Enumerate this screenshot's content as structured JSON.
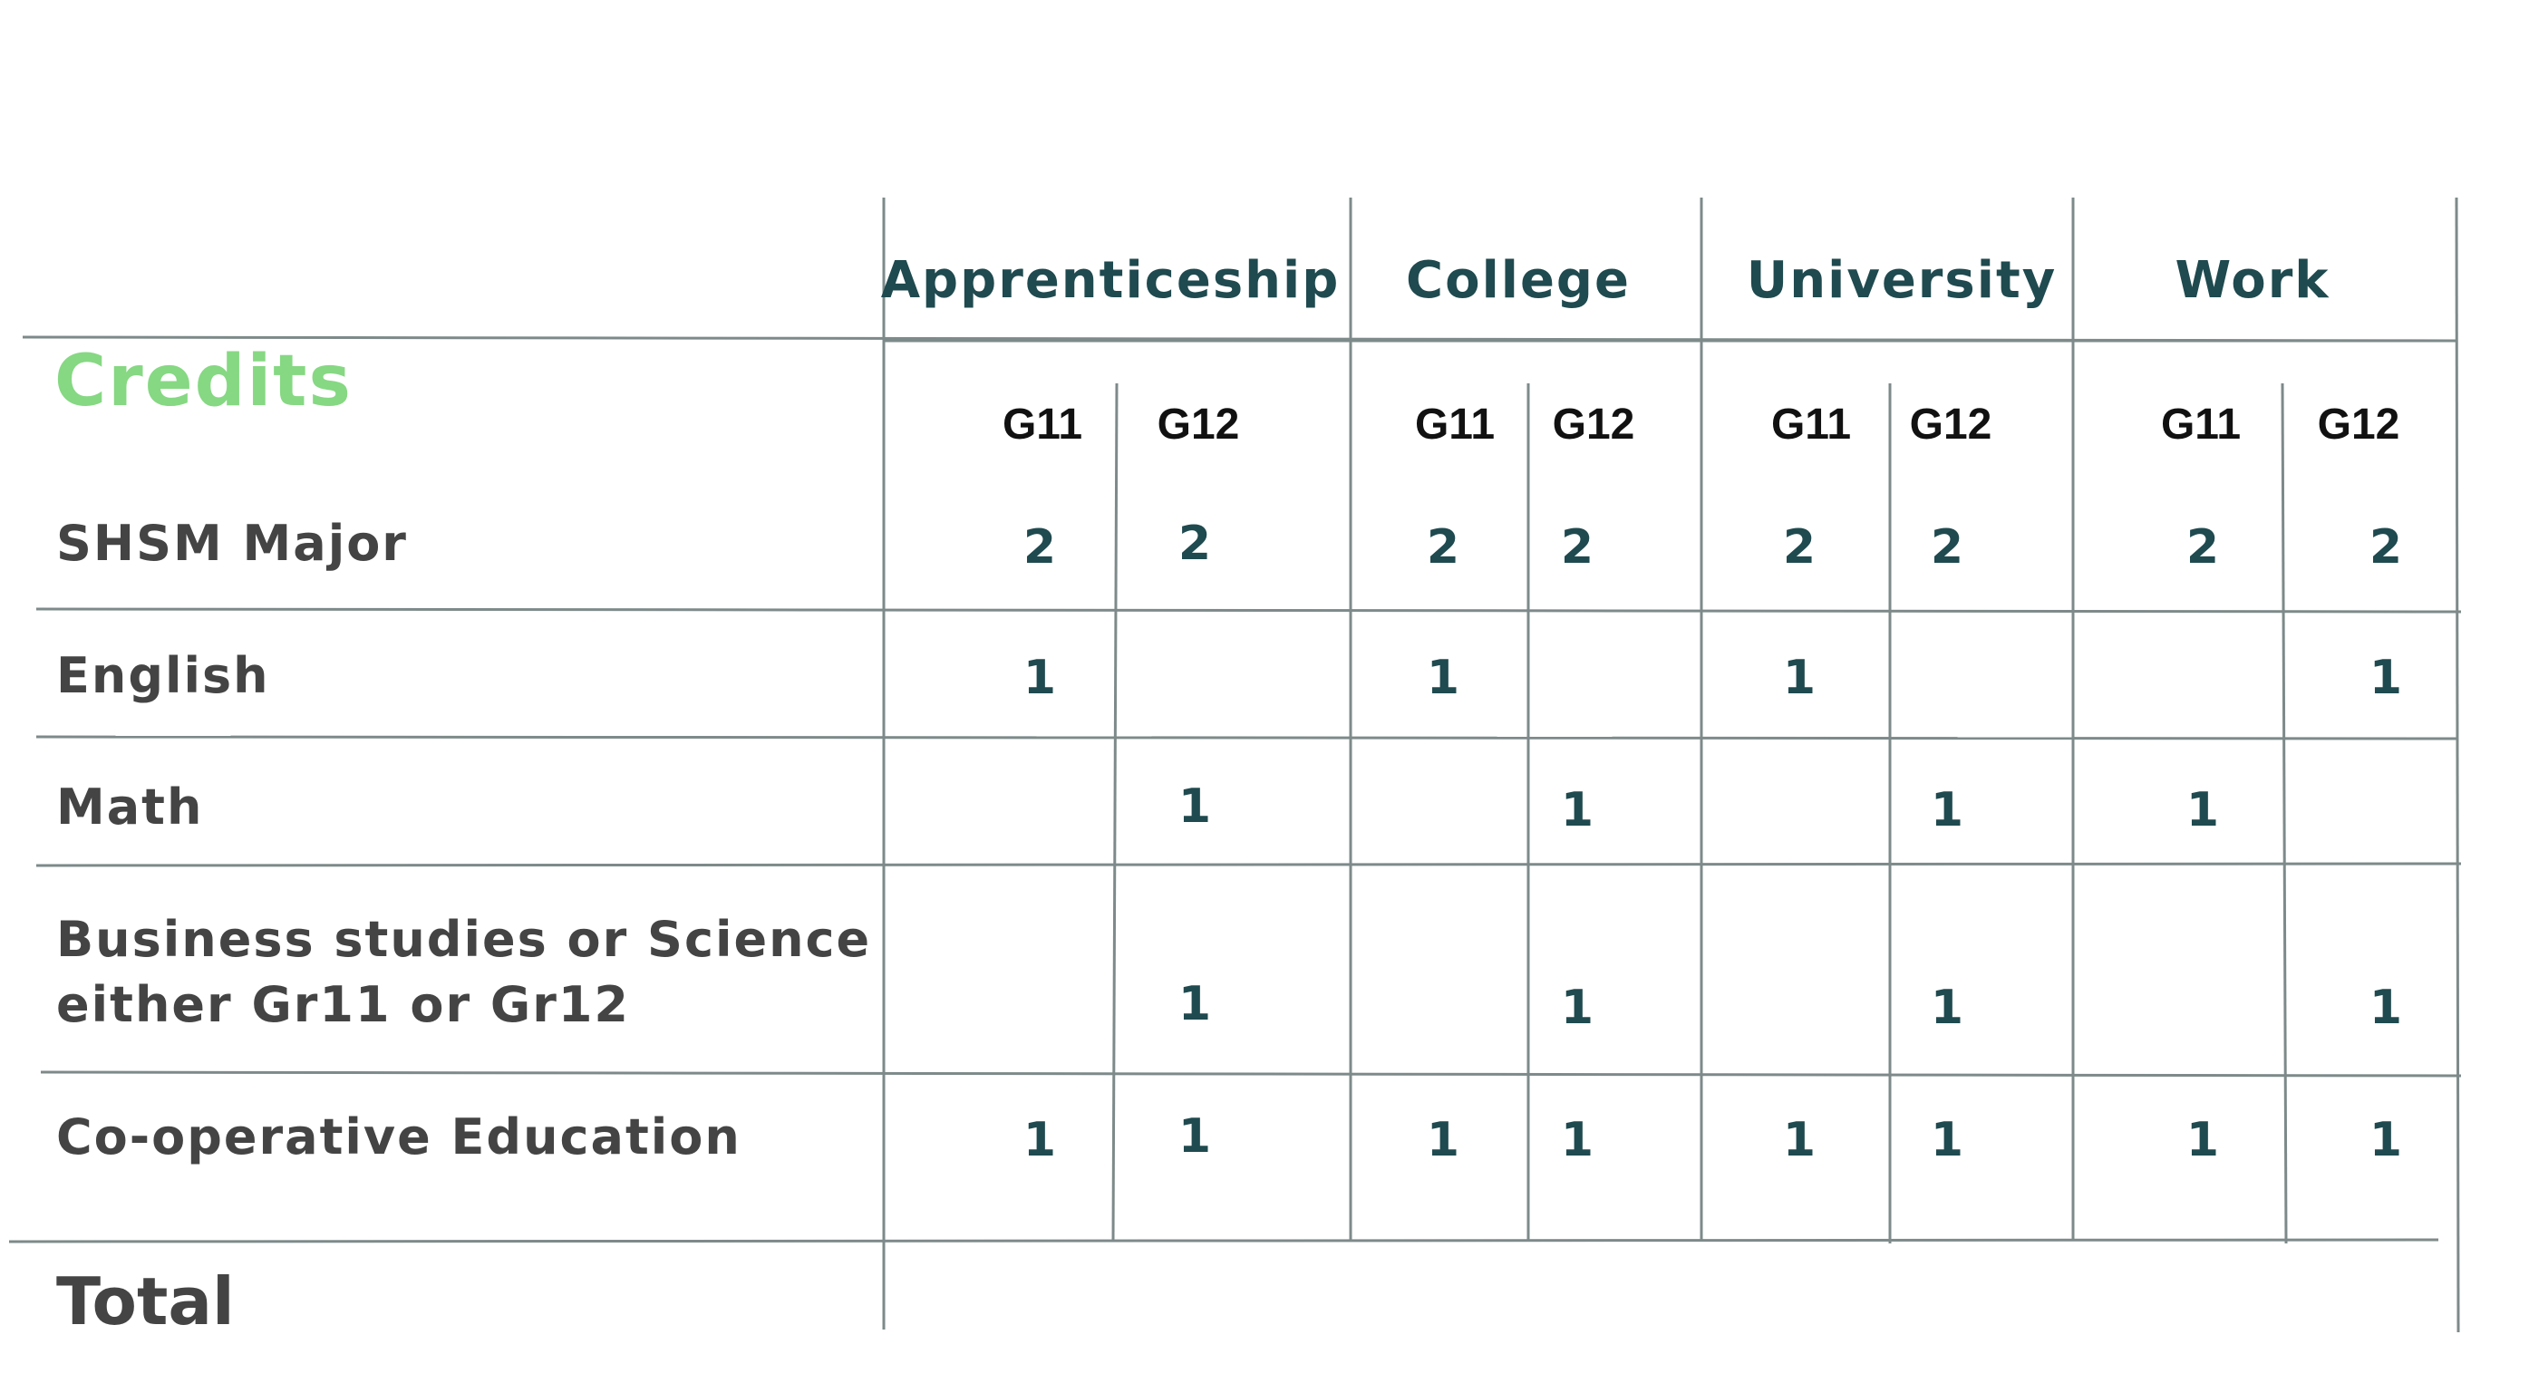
{
  "title": "Credits",
  "pathways": [
    "Apprenticeship",
    "College",
    "University",
    "Work"
  ],
  "grades": [
    "G11",
    "G12"
  ],
  "rows": [
    {
      "label": "SHSM Major",
      "values": [
        "2",
        "2",
        "2",
        "2",
        "2",
        "2",
        "2",
        "2"
      ]
    },
    {
      "label": "English",
      "values": [
        "1",
        "",
        "1",
        "",
        "1",
        "",
        "",
        "1"
      ]
    },
    {
      "label": "Math",
      "values": [
        "",
        "1",
        "",
        "1",
        "",
        "1",
        "1",
        ""
      ]
    },
    {
      "label": "Business studies or Science",
      "label2": "either Gr11 or Gr12",
      "values": [
        "",
        "1",
        "",
        "1",
        "",
        "1",
        "",
        "1"
      ]
    },
    {
      "label": "Co-operative Education",
      "values": [
        "1",
        "1",
        "1",
        "1",
        "1",
        "1",
        "1",
        "1"
      ]
    }
  ],
  "total_label": "Total",
  "colors": {
    "line": "#7d8a89",
    "header": "#1f4a4f",
    "title": "#86d883",
    "label": "#444444"
  }
}
